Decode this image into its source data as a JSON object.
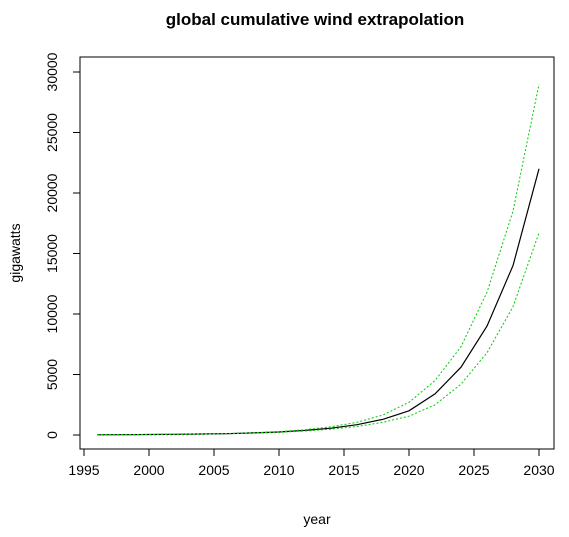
{
  "chart_data": {
    "type": "line",
    "title": "global cumulative wind extrapolation",
    "xlabel": "year",
    "ylabel": "gigawatts",
    "xlim": [
      1996,
      2030
    ],
    "ylim": [
      0,
      30000
    ],
    "x_ticks": [
      1995,
      2000,
      2005,
      2010,
      2015,
      2020,
      2025,
      2030
    ],
    "y_ticks": [
      0,
      5000,
      10000,
      15000,
      20000,
      25000,
      30000
    ],
    "grid": false,
    "x": [
      1996,
      1998,
      2000,
      2002,
      2004,
      2006,
      2008,
      2010,
      2012,
      2014,
      2016,
      2018,
      2020,
      2022,
      2024,
      2026,
      2028,
      2030
    ],
    "series": [
      {
        "role": "estimate",
        "color": "#000000",
        "style": "solid",
        "values": [
          15,
          25,
          40,
          60,
          80,
          110,
          170,
          250,
          380,
          560,
          850,
          1300,
          2000,
          3400,
          5600,
          9000,
          14000,
          22000
        ]
      },
      {
        "role": "upper",
        "color": "#00cc00",
        "style": "dotted",
        "values": [
          15,
          25,
          40,
          60,
          85,
          120,
          185,
          280,
          440,
          680,
          1050,
          1650,
          2700,
          4500,
          7300,
          11800,
          18500,
          29000
        ]
      },
      {
        "role": "lower",
        "color": "#00cc00",
        "style": "dotted",
        "values": [
          15,
          25,
          40,
          60,
          75,
          100,
          155,
          225,
          330,
          480,
          700,
          1050,
          1550,
          2500,
          4200,
          6800,
          10600,
          16700
        ]
      }
    ]
  }
}
